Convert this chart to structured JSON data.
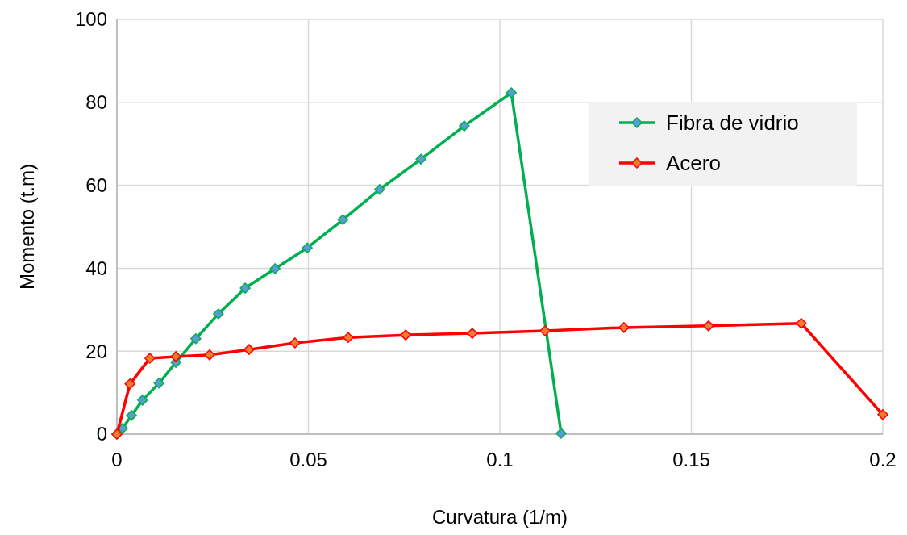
{
  "chart_data": {
    "type": "line",
    "xlabel": "Curvatura (1/m)",
    "ylabel": "Momento (t.m)",
    "xlim": [
      0,
      0.2
    ],
    "xticks": [
      0,
      0.05,
      0.1,
      0.15,
      0.2
    ],
    "ylim": [
      0,
      100
    ],
    "yticks": [
      0,
      20,
      40,
      60,
      80,
      100
    ],
    "grid": true,
    "legend": "top right",
    "marker": "diamond",
    "line_style": "solid",
    "series": [
      {
        "name": "Fibra de vidrio",
        "color": "#00b050",
        "x": [
          0,
          0.0015,
          0.0038,
          0.0067,
          0.011,
          0.0154,
          0.0206,
          0.0265,
          0.0335,
          0.0413,
          0.0497,
          0.059,
          0.0686,
          0.0794,
          0.0907,
          0.103,
          0.116
        ],
        "values": [
          0,
          1.4,
          4.5,
          8.2,
          12.3,
          17.3,
          23,
          29,
          35.2,
          39.9,
          44.9,
          51.7,
          59,
          66.3,
          74.3,
          82.3,
          0.2
        ]
      },
      {
        "name": "Acero",
        "color": "#ff0000",
        "x": [
          0,
          0.0034,
          0.0086,
          0.0154,
          0.0242,
          0.0345,
          0.0465,
          0.0604,
          0.0754,
          0.0928,
          0.1118,
          0.1324,
          0.1545,
          0.1787,
          0.2
        ],
        "values": [
          0,
          12.1,
          18.3,
          18.7,
          19.1,
          20.4,
          22,
          23.3,
          23.9,
          24.3,
          24.9,
          25.7,
          26.1,
          26.7,
          4.7
        ]
      }
    ]
  }
}
